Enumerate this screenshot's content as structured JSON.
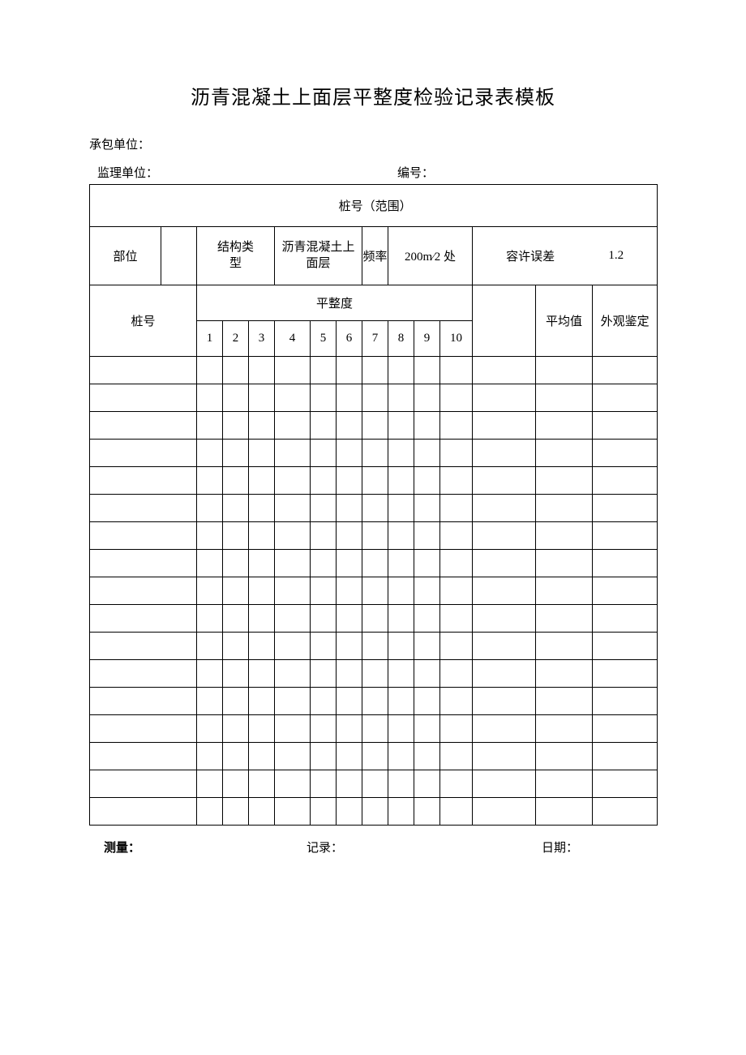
{
  "title": "沥青混凝土上面层平整度检验记录表模板",
  "meta": {
    "contractor_label": "承包单位：",
    "supervisor_label": "监理单位：",
    "number_label": "编号："
  },
  "labels": {
    "pile_range": "桩号（范围）",
    "position": "部位",
    "struct_type": "结构类\n型",
    "struct_value": "沥青混凝土上\n面层",
    "frequency": "频率",
    "frequency_value": "200m⁄2 处",
    "tolerance": "容许误差",
    "tolerance_value": "1.2",
    "pile_no": "桩号",
    "flatness": "平整度",
    "avg": "平均值",
    "appearance": "外观鉴定"
  },
  "numbers": [
    "1",
    "2",
    "3",
    "4",
    "5",
    "6",
    "7",
    "8",
    "9",
    "10"
  ],
  "data_row_count": 17,
  "footer": {
    "measure": "测量：",
    "record": "记录：",
    "date": "日期："
  },
  "colors": {
    "text": "#000000",
    "border": "#000000",
    "bg": "#ffffff"
  }
}
